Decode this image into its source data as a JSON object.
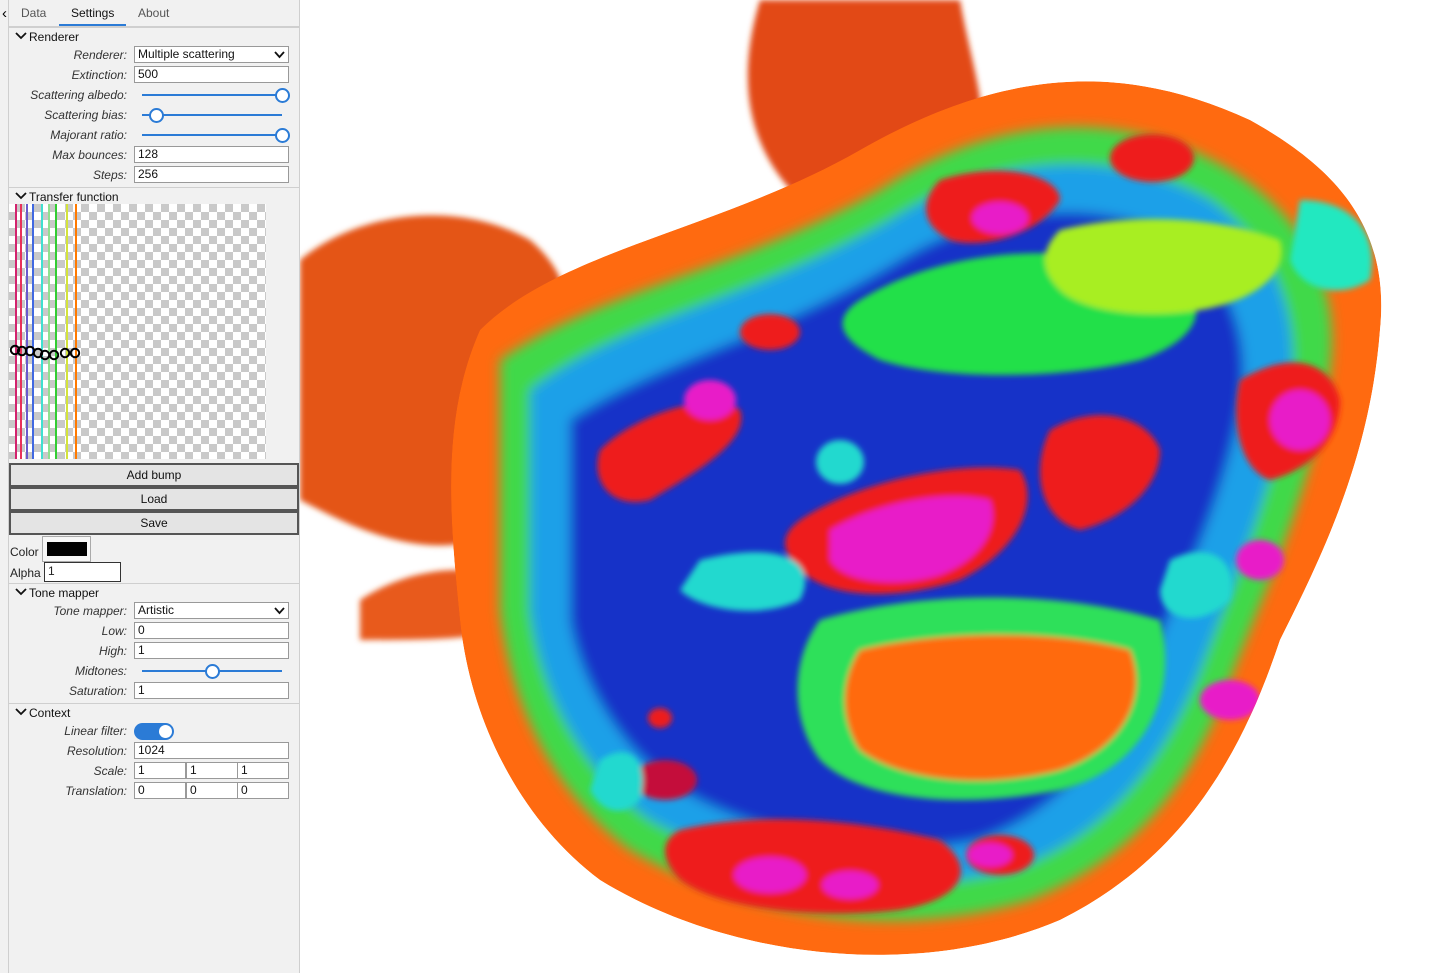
{
  "tabs": [
    {
      "label": "Data",
      "active": false
    },
    {
      "label": "Settings",
      "active": true
    },
    {
      "label": "About",
      "active": false
    }
  ],
  "renderer": {
    "title": "Renderer",
    "renderer_label": "Renderer:",
    "renderer_value": "Multiple scattering",
    "extinction_label": "Extinction:",
    "extinction_value": "500",
    "albedo_label": "Scattering albedo:",
    "albedo_value": 1.0,
    "bias_label": "Scattering bias:",
    "bias_value": 0.1,
    "majorant_label": "Majorant ratio:",
    "majorant_value": 1.0,
    "bounces_label": "Max bounces:",
    "bounces_value": "128",
    "steps_label": "Steps:",
    "steps_value": "256"
  },
  "transfer_function": {
    "title": "Transfer function",
    "bump_colors": [
      "#d2236d",
      "#e8325a",
      "#6a5acd",
      "#4169e1",
      "#40e0d0",
      "#8fe08f",
      "#32cd32",
      "#d4e33c",
      "#ff7a00"
    ],
    "add_bump": "Add bump",
    "load": "Load",
    "save": "Save",
    "color_label": "Color",
    "color_value": "#000000",
    "alpha_label": "Alpha",
    "alpha_value": "1"
  },
  "tone_mapper": {
    "title": "Tone mapper",
    "mapper_label": "Tone mapper:",
    "mapper_value": "Artistic",
    "low_label": "Low:",
    "low_value": "0",
    "high_label": "High:",
    "high_value": "1",
    "midtones_label": "Midtones:",
    "midtones_value": 0.5,
    "saturation_label": "Saturation:",
    "saturation_value": "1"
  },
  "context": {
    "title": "Context",
    "linear_label": "Linear filter:",
    "linear_on": true,
    "resolution_label": "Resolution:",
    "resolution_value": "1024",
    "scale_label": "Scale:",
    "scale": [
      "1",
      "1",
      "1"
    ],
    "translation_label": "Translation:",
    "translation": [
      "0",
      "0",
      "0"
    ]
  },
  "icons": {
    "collapse": "chevron-left-icon",
    "section": "chevron-down-icon",
    "select": "dropdown-arrow-icon"
  },
  "colors": {
    "accent": "#2b7bd6",
    "panel_bg": "#f1f1f1"
  }
}
